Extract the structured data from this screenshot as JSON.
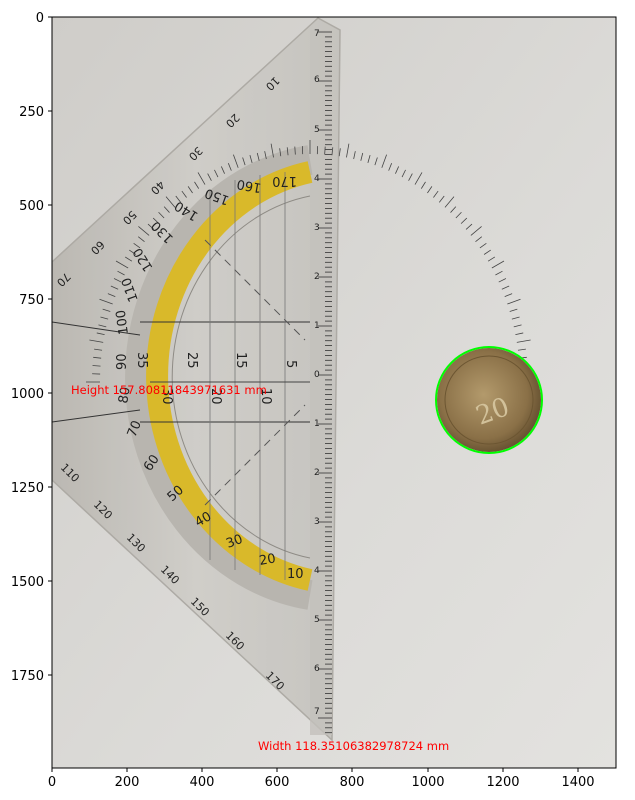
{
  "axes": {
    "x_ticks": [
      "0",
      "200",
      "400",
      "600",
      "800",
      "1000",
      "1200",
      "1400"
    ],
    "y_ticks": [
      "0",
      "250",
      "500",
      "750",
      "1000",
      "1250",
      "1500",
      "1750"
    ]
  },
  "overlay": {
    "height_text": "Height 157.80811843971631 mm",
    "width_text": "Width 118.35106382978724 mm",
    "text_color": "#ff0000",
    "circle_color": "#00ff00"
  },
  "protractor": {
    "outer_numbers": [
      "10",
      "20",
      "30",
      "40",
      "50",
      "60",
      "70",
      "110",
      "120",
      "130",
      "140",
      "150",
      "160",
      "170"
    ],
    "yellow_numbers": [
      "170",
      "160",
      "150",
      "140",
      "130",
      "120",
      "110",
      "100",
      "90",
      "80",
      "70",
      "60",
      "50",
      "40",
      "30",
      "20",
      "10"
    ],
    "center_numbers": [
      "35",
      "25",
      "15",
      "5",
      "30",
      "20",
      "10"
    ],
    "edge_numbers": [
      "7",
      "6",
      "5",
      "4",
      "3",
      "2",
      "1",
      "0",
      "1",
      "2",
      "3",
      "4",
      "5",
      "6",
      "7"
    ]
  },
  "coin": {
    "value_text": "20"
  },
  "colors": {
    "background": "#d6d5d2",
    "plastic": "#c9c8c4",
    "yellow_band": "#d9b92a",
    "coin": "#8a7045"
  }
}
